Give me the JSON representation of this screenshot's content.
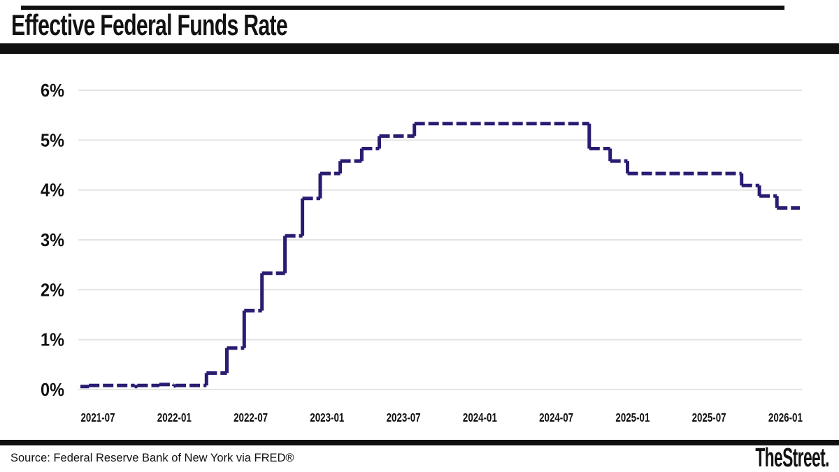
{
  "header": {
    "title": "Effective Federal Funds Rate"
  },
  "footer": {
    "source": "Source: Federal Reserve Bank of New York via FRED®",
    "brand": "TheStreet."
  },
  "colors": {
    "line": "#2b1b72",
    "grid": "#e4e4e4",
    "rule": "#101010",
    "text": "#111111"
  },
  "chart_data": {
    "type": "line",
    "subtype": "step",
    "line_style": "dashed",
    "title": "Effective Federal Funds Rate",
    "ylabel": "",
    "xlabel": "",
    "y_unit": "%",
    "ylim": [
      0,
      6.3
    ],
    "grid": "horizontal",
    "legend": "none",
    "x_range": [
      "2021-05-15",
      "2026-02-10"
    ],
    "y_ticks": [
      {
        "value": 0,
        "label": "0%"
      },
      {
        "value": 1,
        "label": "1%"
      },
      {
        "value": 2,
        "label": "2%"
      },
      {
        "value": 3,
        "label": "3%"
      },
      {
        "value": 4,
        "label": "4%"
      },
      {
        "value": 5,
        "label": "5%"
      },
      {
        "value": 6,
        "label": "6%"
      }
    ],
    "x_ticks": [
      {
        "date": "2021-07-01",
        "label": "2021-07"
      },
      {
        "date": "2022-01-01",
        "label": "2022-01"
      },
      {
        "date": "2022-07-01",
        "label": "2022-07"
      },
      {
        "date": "2023-01-01",
        "label": "2023-01"
      },
      {
        "date": "2023-07-01",
        "label": "2023-07"
      },
      {
        "date": "2024-01-01",
        "label": "2024-01"
      },
      {
        "date": "2024-07-01",
        "label": "2024-07"
      },
      {
        "date": "2025-01-01",
        "label": "2025-01"
      },
      {
        "date": "2025-07-01",
        "label": "2025-07"
      },
      {
        "date": "2026-01-01",
        "label": "2026-01"
      }
    ],
    "series": [
      {
        "name": "Effective Federal Funds Rate",
        "color": "#2b1b72",
        "points": [
          [
            "2021-05-20",
            0.06
          ],
          [
            "2021-06-10",
            0.08
          ],
          [
            "2021-09-28",
            0.06
          ],
          [
            "2021-10-04",
            0.08
          ],
          [
            "2021-11-26",
            0.1
          ],
          [
            "2021-12-30",
            0.07
          ],
          [
            "2022-01-04",
            0.08
          ],
          [
            "2022-03-17",
            0.33
          ],
          [
            "2022-05-05",
            0.83
          ],
          [
            "2022-06-16",
            1.58
          ],
          [
            "2022-07-28",
            2.33
          ],
          [
            "2022-09-22",
            3.08
          ],
          [
            "2022-11-03",
            3.83
          ],
          [
            "2022-12-15",
            4.33
          ],
          [
            "2023-02-02",
            4.58
          ],
          [
            "2023-03-23",
            4.83
          ],
          [
            "2023-05-04",
            5.08
          ],
          [
            "2023-07-27",
            5.33
          ],
          [
            "2024-09-19",
            4.83
          ],
          [
            "2024-11-08",
            4.58
          ],
          [
            "2024-12-19",
            4.33
          ],
          [
            "2025-09-18",
            4.09
          ],
          [
            "2025-10-30",
            3.88
          ],
          [
            "2025-12-11",
            3.64
          ],
          [
            "2026-02-05",
            3.64
          ]
        ]
      }
    ]
  }
}
